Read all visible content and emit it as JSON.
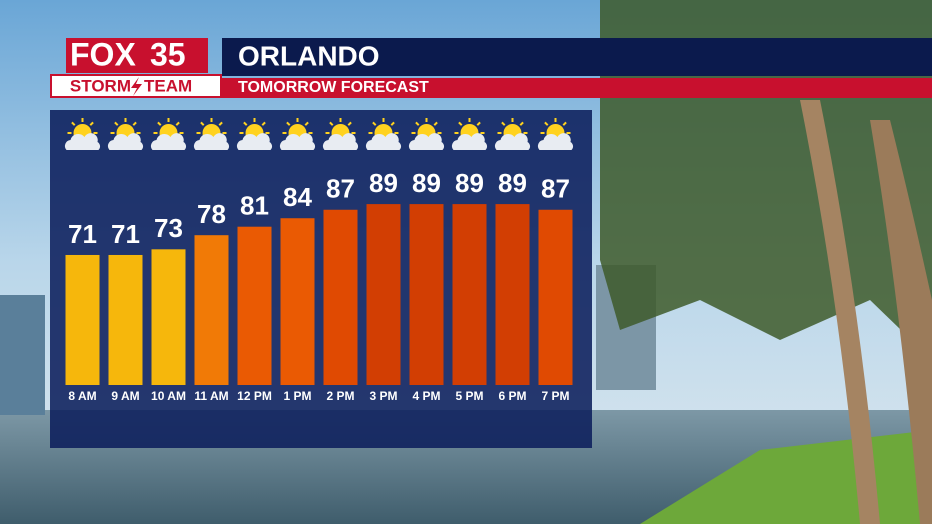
{
  "logo": {
    "brand": "FOX",
    "channel": "35",
    "team_left": "STORM",
    "team_right": "TEAM"
  },
  "chart_data": {
    "type": "bar",
    "title": "ORLANDO",
    "subtitle": "TOMORROW FORECAST",
    "categories": [
      "8 AM",
      "9 AM",
      "10 AM",
      "11 AM",
      "12 PM",
      "1 PM",
      "2 PM",
      "3 PM",
      "4 PM",
      "5 PM",
      "6 PM",
      "7 PM"
    ],
    "values": [
      71,
      71,
      73,
      78,
      81,
      84,
      87,
      89,
      89,
      89,
      89,
      87
    ],
    "colors": [
      "#f6b70c",
      "#f6b70c",
      "#f6b70c",
      "#f17a06",
      "#ea5a03",
      "#ea5a03",
      "#e04a02",
      "#d23e03",
      "#d23e03",
      "#d23e03",
      "#d23e03",
      "#e04a02"
    ],
    "ylim": [
      25,
      100
    ]
  }
}
